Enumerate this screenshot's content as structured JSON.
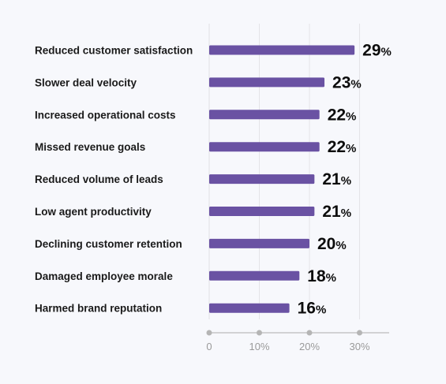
{
  "chart_data": {
    "type": "bar",
    "orientation": "horizontal",
    "categories": [
      "Reduced customer satisfaction",
      "Slower deal velocity",
      "Increased operational costs",
      "Missed revenue goals",
      "Reduced volume of leads",
      "Low agent productivity",
      "Declining customer retention",
      "Damaged employee morale",
      "Harmed brand reputation"
    ],
    "values": [
      29,
      23,
      22,
      22,
      21,
      21,
      20,
      18,
      16
    ],
    "value_labels": [
      "29",
      "23",
      "22",
      "22",
      "21",
      "21",
      "20",
      "18",
      "16"
    ],
    "value_unit": "%",
    "xlim": [
      0,
      35
    ],
    "ticks": [
      0,
      10,
      20,
      30
    ],
    "tick_labels": [
      "0",
      "10%",
      "20%",
      "30%"
    ],
    "grid": true,
    "colors": {
      "bar": "#6a52a3",
      "grid": "#e4e4e8",
      "axis": "#c6c6c6",
      "background": "#f7f8fc"
    }
  }
}
